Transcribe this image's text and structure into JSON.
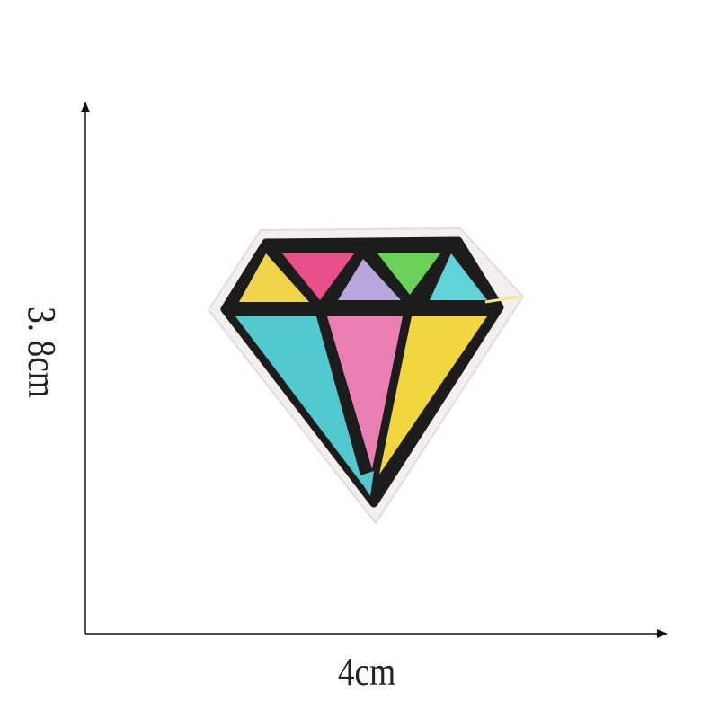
{
  "dimensions": {
    "height": "3. 8cm",
    "width": "4cm"
  }
}
